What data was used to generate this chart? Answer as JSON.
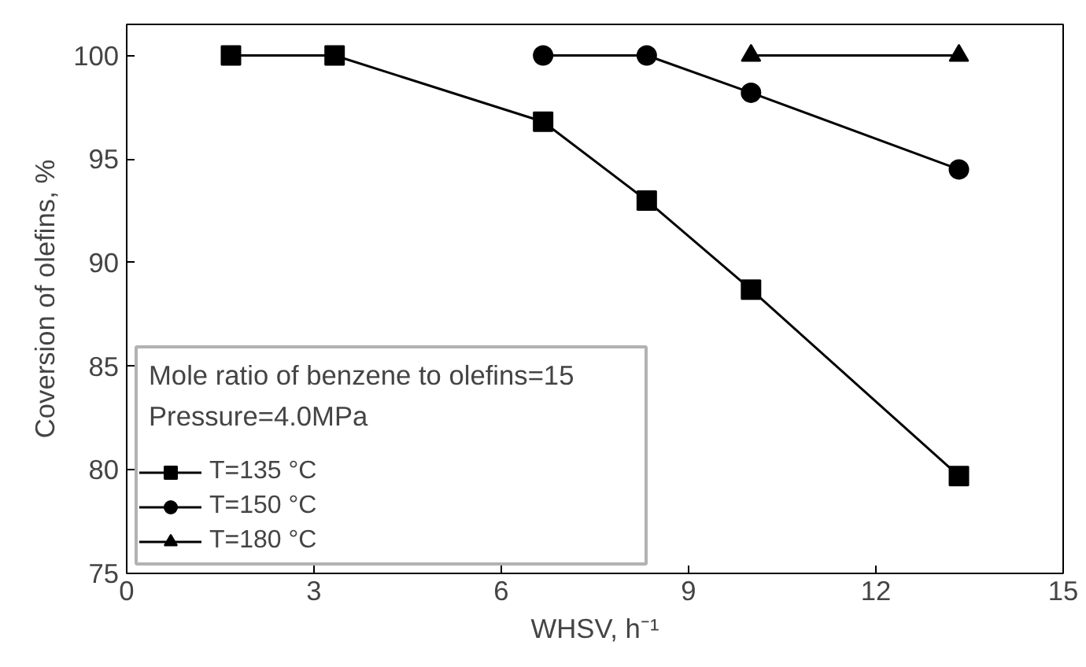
{
  "chart_data": {
    "type": "line",
    "xlabel": "WHSV, h⁻¹",
    "ylabel": "Coversion of olefins, %",
    "x": [
      1.67,
      3.33,
      6.67,
      8.33,
      10,
      13.33
    ],
    "series": [
      {
        "name": "T=135 °C",
        "color": "#000000",
        "marker": "square",
        "values": [
          100,
          100,
          96.8,
          93,
          88.7,
          79.7
        ]
      },
      {
        "name": "T=150 °C",
        "color": "#000000",
        "marker": "circle",
        "values": [
          null,
          null,
          100,
          100,
          98.2,
          94.5
        ]
      },
      {
        "name": "T=180 °C",
        "color": "#000000",
        "marker": "triangle",
        "values": [
          null,
          null,
          null,
          null,
          100,
          100
        ]
      }
    ],
    "annotations": [
      "Mole ratio of benzene to olefins=15",
      "Pressure=4.0MPa"
    ],
    "xlim": [
      0,
      15
    ],
    "xticks": [
      0,
      3,
      6,
      9,
      12,
      15
    ],
    "ylim": [
      75,
      101.5
    ],
    "yticks": [
      75,
      80,
      85,
      90,
      95,
      100
    ],
    "legend": "bottom left",
    "grid": false,
    "line_style": "solid"
  }
}
